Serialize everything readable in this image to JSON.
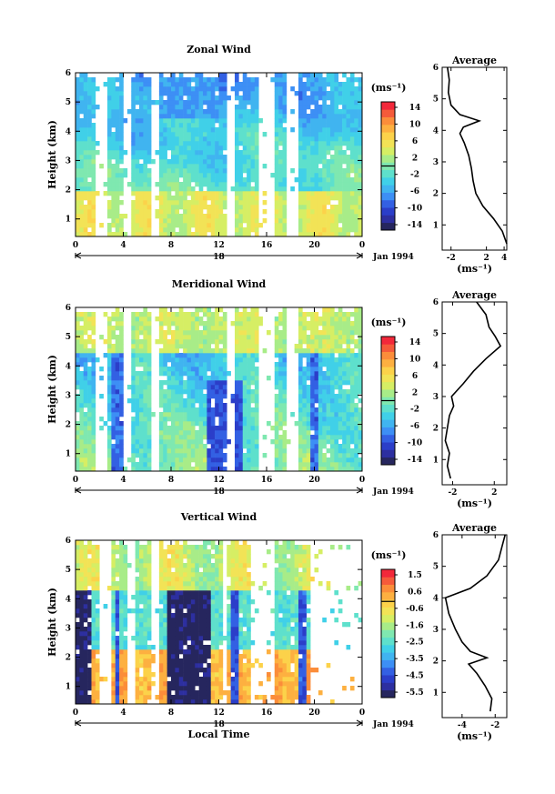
{
  "chart_data": [
    {
      "type": "heatmap",
      "title": "Zonal Wind",
      "ylabel": "Height (km)",
      "xticks": [
        "0",
        "4",
        "8",
        "12",
        "16",
        "20",
        "0"
      ],
      "yticks": [
        "1",
        "2",
        "3",
        "4",
        "5",
        "6"
      ],
      "xlim": [
        0,
        24
      ],
      "ylim": [
        0.4,
        6
      ],
      "date_label": "18",
      "date_suffix": "Jan 1994",
      "colorbar": {
        "unit": "(ms⁻¹)",
        "labels": [
          "14",
          "10",
          "6",
          "2",
          "-2",
          "-6",
          "-10",
          "-14"
        ],
        "range": [
          -16,
          16
        ]
      },
      "average": {
        "title": "Average",
        "xticks": [
          "-2",
          "2",
          "4"
        ],
        "xtick_values": [
          -2,
          2,
          4
        ],
        "xlim": [
          -3,
          4.3
        ],
        "xlabel": "(ms⁻¹)",
        "yticks": [
          "1",
          "2",
          "3",
          "4",
          "5",
          "6"
        ],
        "profile": [
          {
            "h": 0.4,
            "v": 4.3
          },
          {
            "h": 0.8,
            "v": 3.8
          },
          {
            "h": 1.2,
            "v": 2.8
          },
          {
            "h": 1.6,
            "v": 1.6
          },
          {
            "h": 2.0,
            "v": 0.8
          },
          {
            "h": 2.4,
            "v": 0.5
          },
          {
            "h": 2.8,
            "v": 0.3
          },
          {
            "h": 3.2,
            "v": 0.0
          },
          {
            "h": 3.6,
            "v": -0.5
          },
          {
            "h": 3.9,
            "v": -1.0
          },
          {
            "h": 4.1,
            "v": -0.6
          },
          {
            "h": 4.3,
            "v": 1.2
          },
          {
            "h": 4.5,
            "v": -1.0
          },
          {
            "h": 4.8,
            "v": -2.0
          },
          {
            "h": 5.2,
            "v": -2.3
          },
          {
            "h": 5.6,
            "v": -2.2
          },
          {
            "h": 6.0,
            "v": -2.4
          }
        ]
      }
    },
    {
      "type": "heatmap",
      "title": "Meridional Wind",
      "ylabel": "Height (km)",
      "xticks": [
        "0",
        "4",
        "8",
        "12",
        "16",
        "20",
        "0"
      ],
      "yticks": [
        "1",
        "2",
        "3",
        "4",
        "5",
        "6"
      ],
      "xlim": [
        0,
        24
      ],
      "ylim": [
        0.4,
        6
      ],
      "date_label": "18",
      "date_suffix": "Jan 1994",
      "colorbar": {
        "unit": "(ms⁻¹)",
        "labels": [
          "14",
          "10",
          "6",
          "2",
          "-2",
          "-6",
          "-10",
          "-14"
        ],
        "range": [
          -16,
          16
        ]
      },
      "average": {
        "title": "Average",
        "xticks": [
          "-2",
          "2"
        ],
        "xtick_values": [
          -2,
          2
        ],
        "xlim": [
          -3,
          3.2
        ],
        "xlabel": "(ms⁻¹)",
        "yticks": [
          "1",
          "2",
          "3",
          "4",
          "5",
          "6"
        ],
        "profile": [
          {
            "h": 0.4,
            "v": -2.2
          },
          {
            "h": 0.8,
            "v": -2.5
          },
          {
            "h": 1.2,
            "v": -2.3
          },
          {
            "h": 1.6,
            "v": -2.7
          },
          {
            "h": 2.0,
            "v": -2.5
          },
          {
            "h": 2.4,
            "v": -2.3
          },
          {
            "h": 2.7,
            "v": -1.9
          },
          {
            "h": 3.0,
            "v": -2.1
          },
          {
            "h": 3.4,
            "v": -1.0
          },
          {
            "h": 3.8,
            "v": 0.0
          },
          {
            "h": 4.2,
            "v": 1.2
          },
          {
            "h": 4.6,
            "v": 2.6
          },
          {
            "h": 4.9,
            "v": 2.1
          },
          {
            "h": 5.2,
            "v": 1.5
          },
          {
            "h": 5.6,
            "v": 1.2
          },
          {
            "h": 6.0,
            "v": 0.3
          }
        ]
      }
    },
    {
      "type": "heatmap",
      "title": "Vertical Wind",
      "ylabel": "Height (km)",
      "xlabel": "Local Time",
      "xticks": [
        "0",
        "4",
        "8",
        "12",
        "16",
        "20",
        "0"
      ],
      "yticks": [
        "1",
        "2",
        "3",
        "4",
        "5",
        "6"
      ],
      "xlim": [
        0,
        24
      ],
      "ylim": [
        0.4,
        6
      ],
      "date_label": "18",
      "date_suffix": "Jan 1994",
      "colorbar": {
        "unit": "(ms⁻¹)",
        "labels": [
          "1.5",
          "0.6",
          "-0.6",
          "-1.6",
          "-2.5",
          "-3.5",
          "-4.5",
          "-5.5"
        ],
        "range": [
          -6,
          2
        ]
      },
      "average": {
        "title": "Average",
        "xticks": [
          "-4",
          "-2"
        ],
        "xtick_values": [
          -4,
          -2
        ],
        "xlim": [
          -5.2,
          -1.3
        ],
        "xlabel": "(ms⁻¹)",
        "yticks": [
          "1",
          "2",
          "3",
          "4",
          "5",
          "6"
        ],
        "profile": [
          {
            "h": 0.4,
            "v": -2.3
          },
          {
            "h": 0.8,
            "v": -2.2
          },
          {
            "h": 1.2,
            "v": -2.6
          },
          {
            "h": 1.6,
            "v": -3.1
          },
          {
            "h": 1.9,
            "v": -3.6
          },
          {
            "h": 2.1,
            "v": -2.5
          },
          {
            "h": 2.3,
            "v": -3.5
          },
          {
            "h": 2.6,
            "v": -4.0
          },
          {
            "h": 3.0,
            "v": -4.4
          },
          {
            "h": 3.5,
            "v": -4.8
          },
          {
            "h": 4.0,
            "v": -5.0
          },
          {
            "h": 4.3,
            "v": -3.5
          },
          {
            "h": 4.7,
            "v": -2.5
          },
          {
            "h": 5.2,
            "v": -1.8
          },
          {
            "h": 5.6,
            "v": -1.6
          },
          {
            "h": 6.0,
            "v": -1.4
          }
        ]
      }
    }
  ]
}
